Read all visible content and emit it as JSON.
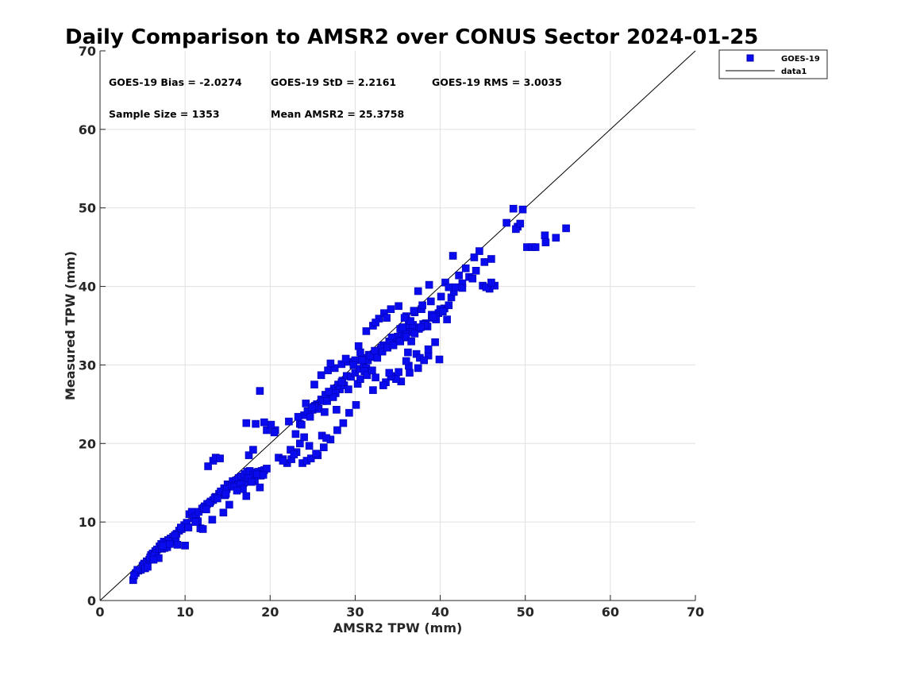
{
  "colors": {
    "marker": "#0a0aee",
    "marker_edge": "#0000a8",
    "identity_line": "#000000",
    "grid": "#e0e0e0",
    "axes": "#262626"
  },
  "chart_data": {
    "type": "scatter",
    "title": "Daily Comparison to AMSR2 over CONUS Sector 2024-01-25",
    "xlabel": "AMSR2 TPW (mm)",
    "ylabel": "Measured TPW (mm)",
    "xlim": [
      0,
      70
    ],
    "ylim": [
      0,
      70
    ],
    "xticks": [
      "0",
      "10",
      "20",
      "30",
      "40",
      "50",
      "60",
      "70"
    ],
    "yticks": [
      "0",
      "10",
      "20",
      "30",
      "40",
      "50",
      "60",
      "70"
    ],
    "grid": true,
    "legend_position": "outside-top-right",
    "legend": [
      {
        "label": "GOES-19",
        "kind": "marker"
      },
      {
        "label": "data1",
        "kind": "line"
      }
    ],
    "annotations": {
      "bias": "GOES-19 Bias = -2.0274",
      "std": "GOES-19 StD = 2.2161",
      "rms": "GOES-19 RMS = 3.0035",
      "sample_size": "Sample Size = 1353",
      "mean_amsr2": "Mean AMSR2 = 25.3758"
    },
    "identity_line": {
      "name": "data1",
      "x": [
        0,
        70
      ],
      "y": [
        0,
        70
      ]
    },
    "series": [
      {
        "name": "GOES-19",
        "marker": "square",
        "x": [
          3.9,
          4.2,
          4.5,
          4.8,
          5.0,
          5.2,
          5.5,
          5.8,
          6.0,
          6.2,
          6.5,
          6.7,
          7.0,
          7.2,
          7.5,
          7.8,
          8.0,
          8.3,
          8.6,
          9.0,
          9.3,
          9.6,
          9.9,
          10.2,
          10.5,
          10.8,
          4.4,
          5.1,
          5.9,
          6.6,
          7.3,
          8.1,
          8.8,
          9.5,
          4.0,
          5.3,
          6.4,
          7.6,
          8.9,
          10.0,
          6.9,
          7.9,
          9.1,
          10.4,
          5.6,
          6.3,
          7.4,
          8.2,
          11.0,
          11.3,
          11.6,
          12.0,
          12.3,
          12.6,
          13.0,
          13.3,
          13.6,
          14.0,
          14.3,
          14.6,
          15.0,
          15.3,
          15.6,
          16.0,
          16.3,
          16.6,
          17.0,
          17.3,
          17.6,
          18.0,
          18.3,
          18.6,
          19.0,
          19.3,
          19.6,
          11.5,
          12.2,
          12.9,
          13.5,
          14.2,
          14.9,
          15.5,
          16.2,
          16.9,
          17.5,
          18.2,
          18.9,
          12.5,
          13.8,
          14.7,
          15.8,
          16.5,
          17.8,
          18.5,
          11.8,
          13.2,
          14.5,
          15.2,
          16.8,
          17.2,
          11.2,
          12.1,
          14.8,
          16.1,
          18.8,
          19.2,
          13.3,
          13.6,
          12.7,
          14.1,
          17.2,
          18.3,
          18.8,
          19.6,
          20.6,
          20.1,
          20.5,
          17.5,
          19.3,
          18.0,
          21.0,
          21.5,
          22.0,
          22.5,
          23.0,
          23.5,
          24.0,
          24.5,
          25.0,
          25.5,
          26.0,
          26.5,
          27.0,
          27.5,
          28.0,
          28.5,
          29.0,
          22.2,
          23.3,
          24.4,
          25.3,
          26.2,
          27.3,
          28.2,
          23.7,
          24.7,
          25.7,
          26.7,
          27.7,
          28.7,
          24.2,
          25.2,
          26.4,
          27.4,
          28.4,
          23.1,
          24.9,
          26.9,
          23.8,
          24.3,
          25.6,
          26.3,
          27.1,
          27.9,
          28.6,
          29.3,
          30.1,
          24.8,
          26.1,
          27.8,
          25.2,
          26.0,
          26.8,
          27.6,
          28.4,
          29.2,
          30.0,
          30.8,
          31.6,
          27.1,
          28.9,
          30.4,
          21.5,
          22.4,
          23.5,
          24.6,
          25.4,
          26.6,
          24.0,
          22.8,
          29.5,
          30.0,
          30.5,
          31.0,
          31.5,
          32.0,
          32.5,
          33.0,
          33.5,
          34.0,
          34.5,
          35.0,
          35.5,
          36.0,
          36.5,
          29.8,
          30.8,
          31.8,
          32.8,
          33.8,
          34.8,
          35.8,
          30.3,
          31.3,
          32.3,
          33.3,
          34.3,
          35.3,
          36.3,
          29.2,
          31.1,
          32.6,
          34.1,
          35.6,
          30.6,
          33.1,
          36.8,
          31.3,
          32.1,
          32.8,
          33.4,
          34.2,
          35.1,
          36.0,
          37.0,
          37.8,
          32.4,
          33.7,
          36.5,
          30.6,
          31.4,
          32.4,
          33.6,
          34.4,
          35.4,
          36.4,
          37.4,
          32.0,
          34.8,
          32.1,
          33.3,
          34.2,
          35.1,
          36.3,
          37.2,
          38.6,
          34.0,
          36.0,
          33.2,
          33.8,
          34.5,
          35.3,
          36.0,
          36.8,
          37.5,
          38.3,
          39.0,
          39.8,
          40.5,
          41.0,
          37.0,
          38.0,
          39.0,
          40.0,
          41.3,
          38.5,
          39.5,
          40.3,
          38.2,
          39.2,
          40.8,
          37.7,
          36.6,
          41.6,
          40.1,
          38.6,
          39.4,
          35.8,
          36.9,
          37.9,
          38.9,
          37.4,
          38.7,
          40.6,
          36.2,
          37.6,
          38.1,
          39.9,
          41.0,
          41.8,
          42.6,
          43.4,
          44.2,
          45.0,
          45.8,
          46.4,
          42.2,
          43.0,
          44.0,
          45.4,
          46.0,
          43.8,
          42.6,
          41.5,
          44.6,
          45.2,
          48.6,
          49.1,
          49.7,
          48.9,
          49.4,
          50.2,
          50.8,
          51.2,
          52.3,
          53.6,
          54.8,
          52.4,
          47.8,
          46.0
        ],
        "y": [
          2.6,
          3.5,
          3.8,
          3.9,
          4.4,
          4.7,
          5.0,
          5.2,
          5.8,
          6.0,
          6.3,
          6.5,
          6.9,
          7.2,
          7.5,
          7.4,
          7.7,
          7.9,
          8.1,
          8.5,
          8.9,
          9.1,
          9.6,
          9.9,
          11.0,
          11.3,
          3.9,
          4.5,
          5.5,
          6.0,
          6.6,
          7.6,
          8.3,
          9.3,
          3.2,
          4.1,
          5.7,
          6.7,
          7.5,
          7.0,
          5.4,
          6.8,
          7.1,
          9.3,
          4.3,
          5.2,
          7.0,
          7.2,
          10.5,
          10.7,
          11.3,
          11.7,
          12.0,
          12.3,
          12.6,
          12.8,
          13.2,
          13.6,
          13.8,
          14.3,
          14.8,
          14.7,
          15.2,
          15.3,
          15.6,
          15.8,
          16.1,
          16.4,
          16.5,
          16.0,
          16.3,
          16.4,
          16.5,
          16.6,
          16.8,
          10.1,
          11.8,
          12.4,
          13.1,
          13.9,
          14.2,
          14.6,
          14.7,
          15.0,
          15.6,
          15.2,
          15.9,
          11.6,
          13.0,
          13.4,
          14.5,
          14.8,
          15.1,
          16.1,
          9.2,
          10.3,
          11.2,
          12.2,
          14.2,
          13.3,
          10.0,
          9.1,
          13.6,
          14.0,
          14.4,
          16.0,
          17.8,
          18.2,
          17.1,
          18.1,
          22.6,
          22.5,
          26.7,
          21.7,
          21.7,
          22.4,
          21.4,
          18.5,
          22.7,
          19.2,
          18.2,
          18.0,
          17.5,
          18.0,
          21.2,
          22.5,
          23.6,
          24.1,
          24.3,
          25.0,
          25.6,
          26.2,
          26.5,
          27.0,
          27.5,
          28.0,
          28.6,
          22.8,
          23.4,
          24.1,
          24.8,
          25.4,
          26.1,
          26.9,
          22.4,
          23.4,
          24.4,
          25.4,
          26.4,
          27.4,
          25.1,
          24.7,
          24.0,
          25.9,
          27.8,
          18.9,
          24.6,
          26.6,
          17.5,
          17.8,
          18.5,
          19.5,
          20.5,
          21.7,
          22.6,
          23.9,
          24.9,
          18.1,
          21.0,
          24.3,
          27.5,
          28.7,
          29.3,
          29.6,
          30.1,
          30.4,
          30.6,
          30.9,
          31.3,
          30.2,
          30.8,
          32.4,
          17.8,
          19.2,
          20.0,
          19.7,
          18.7,
          20.7,
          20.8,
          18.6,
          28.5,
          29.0,
          29.5,
          30.0,
          30.6,
          31.0,
          31.5,
          32.0,
          32.5,
          33.0,
          33.3,
          33.6,
          34.0,
          34.4,
          34.8,
          30.0,
          30.6,
          31.2,
          31.8,
          32.2,
          33.0,
          33.5,
          27.6,
          29.6,
          31.8,
          32.5,
          33.5,
          34.6,
          35.1,
          26.9,
          29.2,
          30.9,
          32.8,
          34.8,
          31.6,
          32.2,
          35.1,
          34.3,
          35.0,
          35.9,
          36.6,
          37.1,
          37.5,
          36.2,
          36.7,
          37.1,
          35.4,
          36.0,
          35.6,
          28.2,
          28.7,
          28.4,
          27.8,
          28.5,
          27.9,
          29.0,
          29.6,
          29.3,
          28.2,
          26.8,
          27.4,
          28.6,
          29.1,
          29.9,
          31.4,
          31.2,
          29.0,
          30.5,
          31.7,
          32.2,
          32.5,
          33.0,
          33.6,
          34.2,
          34.6,
          35.3,
          36.0,
          36.6,
          37.2,
          37.6,
          34.0,
          35.2,
          36.4,
          37.1,
          38.6,
          34.9,
          35.8,
          36.8,
          35.1,
          36.1,
          35.8,
          34.8,
          33.0,
          39.3,
          38.7,
          32.0,
          32.9,
          36.0,
          36.9,
          37.6,
          38.1,
          39.4,
          40.2,
          40.5,
          31.6,
          30.9,
          30.6,
          30.7,
          39.9,
          39.9,
          40.4,
          41.2,
          42.0,
          40.1,
          39.7,
          40.1,
          41.4,
          42.3,
          43.7,
          39.9,
          40.5,
          41.0,
          39.8,
          43.9,
          44.5,
          43.1,
          49.9,
          47.6,
          49.8,
          47.3,
          48.0,
          45.0,
          45.0,
          45.0,
          46.5,
          46.2,
          47.4,
          45.6,
          48.1,
          43.5
        ]
      }
    ]
  }
}
